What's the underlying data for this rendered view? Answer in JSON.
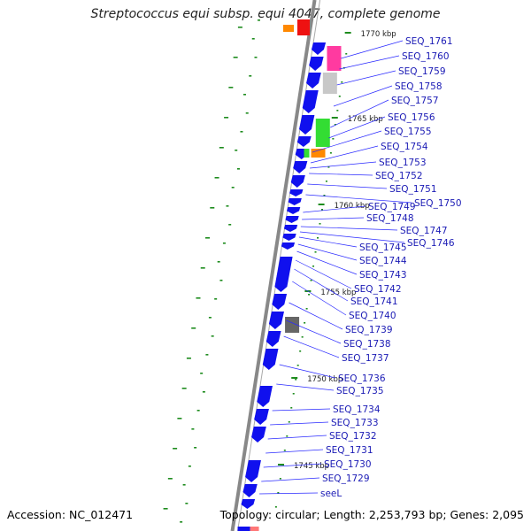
{
  "title": "Streptococcus equi subsp. equi 4047, complete genome",
  "accession": "Accession: NC_012471",
  "topology": "Topology: circular; Length: 2,253,793 bp; Genes: 2,095",
  "colors": {
    "backbone": "#888888",
    "cds": "#1010ee",
    "gc_tick": "#1e8c1e",
    "label": "#1a1ab5",
    "leader": "#2a2aff",
    "pink": "#ff3aa0",
    "light_gray": "#c8c8c8",
    "green": "#33dd33",
    "orange": "#ff8800",
    "dark_gray": "#666666",
    "red": "#ee1111"
  },
  "kbp_ticks": [
    "1770 kbp",
    "1765 kbp",
    "1760 kbp",
    "1755 kbp",
    "1750 kbp",
    "1745 kbp"
  ],
  "genes": [
    "SEQ_1761",
    "SEQ_1760",
    "SEQ_1759",
    "SEQ_1758",
    "SEQ_1757",
    "SEQ_1756",
    "SEQ_1755",
    "SEQ_1754",
    "SEQ_1753",
    "SEQ_1752",
    "SEQ_1751",
    "SEQ_1750",
    "SEQ_1749",
    "SEQ_1748",
    "SEQ_1747",
    "SEQ_1746",
    "SEQ_1745",
    "SEQ_1744",
    "SEQ_1743",
    "SEQ_1742",
    "SEQ_1741",
    "SEQ_1740",
    "SEQ_1739",
    "SEQ_1738",
    "SEQ_1737",
    "SEQ_1736",
    "SEQ_1735",
    "SEQ_1734",
    "SEQ_1733",
    "SEQ_1732",
    "SEQ_1731",
    "SEQ_1730",
    "SEQ_1729",
    "seeL"
  ]
}
